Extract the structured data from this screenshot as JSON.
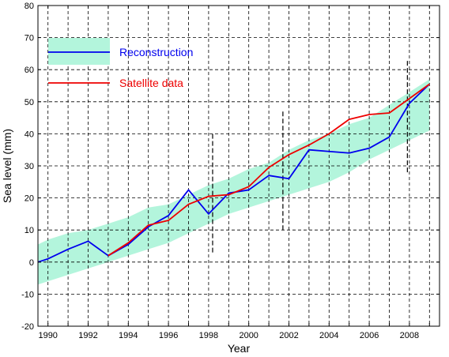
{
  "chart_data": {
    "type": "line",
    "title": "",
    "xlabel": "Year",
    "ylabel": "Sea level (mm)",
    "xlim": [
      1989.5,
      2009.5
    ],
    "ylim": [
      -20,
      80
    ],
    "x_ticks": [
      1990,
      1992,
      1994,
      1996,
      1998,
      2000,
      2002,
      2004,
      2006,
      2008
    ],
    "y_ticks": [
      -20,
      -10,
      0,
      10,
      20,
      30,
      40,
      50,
      60,
      70,
      80
    ],
    "grid": true,
    "legend_position": "top-left",
    "band": {
      "color": "#b3f5dc",
      "x": [
        1989.5,
        1990,
        1991,
        1992,
        1993,
        1994,
        1995,
        1996,
        1997,
        1998,
        1999,
        2000,
        2001,
        2002,
        2003,
        2004,
        2005,
        2006,
        2007,
        2008,
        2009
      ],
      "upper": [
        5.5,
        7,
        9,
        10,
        12,
        14,
        17,
        18,
        21,
        24,
        26,
        29,
        31,
        35,
        38,
        40,
        43,
        45,
        49,
        53,
        57
      ],
      "lower": [
        -7,
        -6,
        -4,
        -2,
        0,
        2,
        4,
        6,
        9,
        12,
        15,
        17,
        19,
        21,
        23,
        25,
        28,
        32,
        35,
        38,
        41
      ]
    },
    "series": [
      {
        "name": "Reconstruction",
        "color": "#0000ee",
        "x": [
          1989.5,
          1990,
          1991,
          1992,
          1993,
          1994,
          1995,
          1996,
          1997,
          1998,
          1999,
          2000,
          2001,
          2002,
          2003,
          2004,
          2005,
          2006,
          2007,
          2008,
          2009
        ],
        "values": [
          0,
          1,
          4,
          6.5,
          2,
          5.5,
          11,
          14.5,
          22.5,
          15,
          21.5,
          22.5,
          27,
          26,
          35,
          34.5,
          34,
          35.5,
          39,
          49.5,
          55.5
        ]
      },
      {
        "name": "Satellite data",
        "color": "#ee0000",
        "x": [
          1993,
          1994,
          1995,
          1996,
          1997,
          1998,
          1999,
          2000,
          2001,
          2002,
          2003,
          2004,
          2005,
          2006,
          2007,
          2008,
          2009
        ],
        "values": [
          2,
          6,
          11.5,
          13,
          18,
          20.5,
          21,
          23.5,
          29.5,
          33.5,
          36.5,
          40,
          44.5,
          46,
          46.5,
          51,
          55.5
        ]
      }
    ],
    "error_bars": [
      {
        "x": 1998.2,
        "low": 3,
        "high": 40
      },
      {
        "x": 2001.7,
        "low": 10,
        "high": 47
      },
      {
        "x": 2007.9,
        "low": 28,
        "high": 63
      }
    ]
  }
}
